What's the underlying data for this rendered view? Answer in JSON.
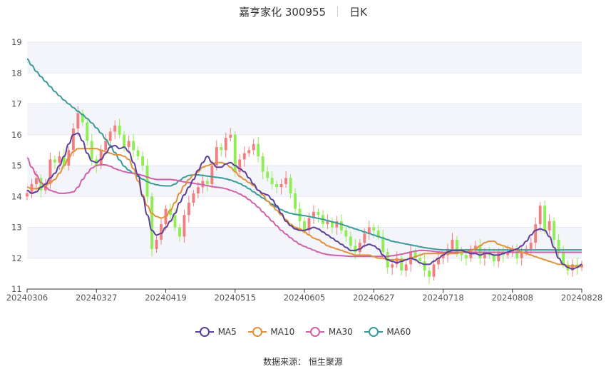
{
  "header": {
    "stock_name": "嘉亨家化 300955",
    "period": "日K"
  },
  "footer": {
    "source_label": "数据来源：",
    "source_name": "恒生聚源"
  },
  "colors": {
    "up": "#f08080",
    "down": "#90ee55",
    "ma5": "#5b3f99",
    "ma10": "#e0913a",
    "ma30": "#d060a8",
    "ma60": "#3a9a9a",
    "grid": "#e6e8ef",
    "band": "#f4f5fa"
  },
  "chart_data": {
    "type": "candlestick",
    "y_ticks": [
      "11",
      "12",
      "13",
      "14",
      "15",
      "16",
      "17",
      "18",
      "19"
    ],
    "ylim": [
      11,
      19
    ],
    "x_tick_labels": [
      "20240306",
      "20240327",
      "20240419",
      "20240515",
      "20240605",
      "20240627",
      "20240718",
      "20240808",
      "20240828"
    ],
    "x_tick_index": [
      0,
      15,
      30,
      45,
      60,
      75,
      90,
      105,
      120
    ],
    "num_days": 121,
    "legend": [
      "MA5",
      "MA10",
      "MA30",
      "MA60"
    ],
    "closes": [
      14.1,
      14.4,
      14.6,
      14.2,
      14.4,
      15.2,
      15.1,
      15.3,
      15.0,
      15.5,
      16.2,
      16.7,
      16.4,
      15.8,
      15.2,
      15.0,
      15.5,
      15.8,
      16.1,
      16.3,
      16.0,
      15.6,
      15.8,
      15.5,
      15.3,
      15.0,
      14.0,
      12.3,
      12.6,
      13.1,
      13.6,
      13.4,
      13.0,
      12.7,
      13.4,
      13.8,
      14.1,
      14.3,
      14.5,
      14.4,
      15.0,
      15.6,
      15.5,
      15.9,
      16.0,
      14.8,
      15.2,
      15.4,
      15.5,
      15.7,
      15.3,
      14.8,
      14.6,
      14.4,
      14.3,
      14.4,
      14.6,
      14.1,
      13.6,
      13.2,
      12.9,
      13.3,
      13.5,
      13.4,
      13.1,
      13.2,
      13.0,
      13.2,
      12.9,
      12.7,
      12.4,
      12.2,
      12.5,
      12.8,
      13.0,
      12.9,
      12.7,
      12.2,
      11.7,
      11.8,
      12.0,
      11.6,
      11.8,
      12.2,
      12.0,
      11.9,
      11.6,
      11.4,
      11.8,
      12.0,
      12.1,
      12.3,
      12.6,
      12.2,
      12.1,
      12.0,
      12.3,
      12.4,
      12.0,
      12.2,
      12.1,
      11.9,
      12.2,
      12.1,
      12.2,
      12.3,
      12.0,
      12.2,
      12.3,
      12.5,
      13.1,
      13.7,
      12.9,
      13.2,
      12.6,
      12.2,
      11.8,
      11.6,
      11.8,
      11.7,
      11.8
    ],
    "ma5": [
      14.2,
      14.1,
      14.15,
      14.3,
      14.4,
      14.6,
      14.75,
      15.0,
      15.3,
      15.7,
      16.0,
      16.05,
      15.8,
      15.4,
      15.15,
      15.1,
      15.2,
      15.4,
      15.6,
      15.65,
      15.55,
      15.6,
      15.45,
      15.1,
      14.7,
      14.0,
      13.4,
      12.9,
      12.75,
      12.8,
      13.0,
      13.2,
      13.45,
      13.8,
      14.05,
      14.3,
      14.55,
      14.85,
      15.1,
      15.3,
      15.1,
      14.95,
      14.95,
      15.05,
      15.1,
      15.0,
      14.9,
      14.8,
      14.6,
      14.4,
      14.2,
      14.1,
      14.05,
      13.9,
      13.7,
      13.45,
      13.2,
      13.05,
      12.95,
      12.9,
      12.9,
      12.95,
      13.0,
      12.95,
      12.85,
      12.75,
      12.65,
      12.55,
      12.45,
      12.35,
      12.25,
      12.25,
      12.3,
      12.4,
      12.45,
      12.4,
      12.3,
      12.1,
      11.95,
      11.9,
      11.85,
      11.9,
      11.95,
      12.0,
      11.95,
      11.85,
      11.8,
      11.8,
      11.9,
      12.0,
      12.1,
      12.2,
      12.25,
      12.25,
      12.25,
      12.2,
      12.15,
      12.15,
      12.1,
      12.15,
      12.15,
      12.1,
      12.1,
      12.15,
      12.2,
      12.25,
      12.3,
      12.4,
      12.55,
      12.75,
      12.9,
      12.95,
      12.9,
      12.7,
      12.35,
      12.0,
      11.8,
      11.7,
      11.65,
      11.7,
      11.8
    ],
    "ma10": [
      14.3,
      14.25,
      14.25,
      14.3,
      14.35,
      14.45,
      14.55,
      14.75,
      15.0,
      15.25,
      15.45,
      15.55,
      15.55,
      15.55,
      15.55,
      15.55,
      15.5,
      15.45,
      15.4,
      15.35,
      15.35,
      15.3,
      15.2,
      14.9,
      14.5,
      14.05,
      13.7,
      13.45,
      13.35,
      13.3,
      13.35,
      13.55,
      13.8,
      14.1,
      14.35,
      14.55,
      14.7,
      14.8,
      14.95,
      15.0,
      15.05,
      15.1,
      15.1,
      15.05,
      14.95,
      14.8,
      14.65,
      14.55,
      14.45,
      14.35,
      14.2,
      14.05,
      13.85,
      13.7,
      13.55,
      13.4,
      13.25,
      13.1,
      13.0,
      12.95,
      12.85,
      12.75,
      12.65,
      12.6,
      12.5,
      12.4,
      12.35,
      12.3,
      12.25,
      12.2,
      12.15,
      12.1,
      12.1,
      12.1,
      12.1,
      12.05,
      12.0,
      12.0,
      11.95,
      11.95,
      11.95,
      11.95,
      11.95,
      12.0,
      12.05,
      12.1,
      12.15,
      12.15,
      12.15,
      12.15,
      12.15,
      12.15,
      12.15,
      12.15,
      12.2,
      12.2,
      12.25,
      12.3,
      12.4,
      12.5,
      12.55,
      12.55,
      12.45,
      12.4,
      12.35,
      12.3,
      12.25,
      12.2,
      12.15,
      12.1,
      12.05,
      12.0,
      11.95,
      11.9,
      11.85,
      11.8,
      11.8,
      11.75,
      11.75,
      11.75,
      11.75
    ],
    "ma30": [
      15.25,
      14.95,
      14.7,
      14.45,
      14.3,
      14.2,
      14.15,
      14.1,
      14.1,
      14.12,
      14.15,
      14.3,
      14.55,
      14.75,
      14.92,
      15.0,
      15.03,
      15.02,
      14.98,
      14.9,
      14.85,
      14.8,
      14.77,
      14.75,
      14.72,
      14.68,
      14.63,
      14.58,
      14.55,
      14.55,
      14.55,
      14.55,
      14.53,
      14.5,
      14.47,
      14.45,
      14.43,
      14.4,
      14.38,
      14.35,
      14.32,
      14.3,
      14.28,
      14.25,
      14.2,
      14.15,
      14.08,
      14.0,
      13.9,
      13.78,
      13.65,
      13.5,
      13.35,
      13.2,
      13.05,
      12.9,
      12.78,
      12.66,
      12.55,
      12.45,
      12.38,
      12.32,
      12.26,
      12.2,
      12.15,
      12.12,
      12.1,
      12.09,
      12.08,
      12.07,
      12.06,
      12.06,
      12.06,
      12.06,
      12.06,
      12.06,
      12.06,
      12.06,
      12.06,
      12.08,
      12.1,
      12.13,
      12.16,
      12.2,
      12.23,
      12.25,
      12.25,
      12.24,
      12.22,
      12.2,
      12.19,
      12.19,
      12.19,
      12.19,
      12.19,
      12.19,
      12.19,
      12.19,
      12.19,
      12.19,
      12.19,
      12.19,
      12.19,
      12.19,
      12.19,
      12.19,
      12.19,
      12.19,
      12.19,
      12.19,
      12.19,
      12.19,
      12.19,
      12.19,
      12.19,
      12.19,
      12.19,
      12.19,
      12.19,
      12.19,
      12.19
    ],
    "ma60": [
      18.45,
      18.25,
      18.05,
      17.88,
      17.72,
      17.56,
      17.4,
      17.26,
      17.12,
      17.0,
      16.88,
      16.76,
      16.65,
      16.52,
      16.38,
      16.22,
      16.05,
      15.85,
      15.65,
      15.42,
      15.18,
      14.98,
      14.85,
      14.75,
      14.65,
      14.56,
      14.48,
      14.42,
      14.38,
      14.35,
      14.34,
      14.34,
      14.4,
      14.52,
      14.62,
      14.68,
      14.7,
      14.7,
      14.68,
      14.66,
      14.64,
      14.62,
      14.6,
      14.57,
      14.53,
      14.48,
      14.42,
      14.34,
      14.25,
      14.15,
      14.05,
      13.95,
      13.85,
      13.75,
      13.65,
      13.57,
      13.5,
      13.45,
      13.42,
      13.4,
      13.38,
      13.35,
      13.32,
      13.29,
      13.26,
      13.22,
      13.18,
      13.14,
      13.1,
      13.05,
      13.0,
      12.95,
      12.9,
      12.85,
      12.8,
      12.75,
      12.7,
      12.65,
      12.6,
      12.55,
      12.52,
      12.49,
      12.46,
      12.43,
      12.4,
      12.37,
      12.34,
      12.32,
      12.3,
      12.28,
      12.27,
      12.27,
      12.27,
      12.27,
      12.27,
      12.27,
      12.27,
      12.27,
      12.27,
      12.27,
      12.27,
      12.27,
      12.27,
      12.27,
      12.27,
      12.27,
      12.27,
      12.27,
      12.27,
      12.27,
      12.27,
      12.27,
      12.27,
      12.27,
      12.27,
      12.27,
      12.27,
      12.27,
      12.27,
      12.27,
      12.27
    ]
  }
}
